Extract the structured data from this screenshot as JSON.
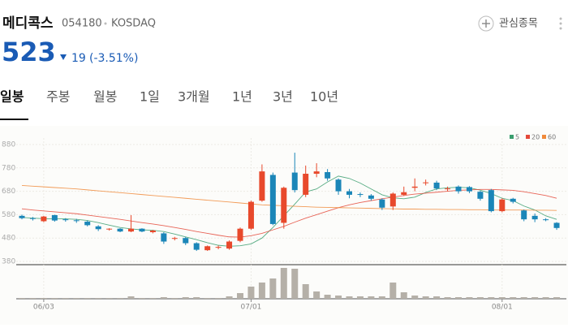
{
  "header": {
    "name": "메디콕스",
    "code": "054180",
    "market": "KOSDAQ",
    "watch": "관심종목",
    "price": "523",
    "change": "19",
    "change_pct": "(-3.51%)"
  },
  "tabs": [
    "일봉",
    "주봉",
    "월봉",
    "1일",
    "3개월",
    "1년",
    "3년",
    "10년"
  ],
  "chart_data": {
    "type": "candlestick",
    "categories": [
      null,
      null,
      "06/03",
      null,
      null,
      null,
      null,
      null,
      null,
      null,
      null,
      null,
      null,
      null,
      null,
      null,
      null,
      null,
      null,
      null,
      null,
      "07/01",
      null,
      null,
      null,
      null,
      null,
      null,
      null,
      null,
      null,
      null,
      null,
      null,
      null,
      null,
      null,
      null,
      null,
      null,
      null,
      null,
      null,
      null,
      "08/01",
      null,
      null,
      null,
      null,
      null
    ],
    "open": [
      575,
      565,
      552,
      578,
      560,
      556,
      550,
      530,
      518,
      520,
      508,
      520,
      505,
      500,
      478,
      480,
      458,
      428,
      440,
      435,
      468,
      520,
      640,
      750,
      545,
      760,
      665,
      755,
      762,
      730,
      680,
      668,
      662,
      645,
      615,
      665,
      695,
      715,
      717,
      690,
      700,
      698,
      678,
      685,
      595,
      648,
      598,
      575,
      560,
      545
    ],
    "high": [
      580,
      570,
      575,
      580,
      565,
      562,
      555,
      535,
      522,
      522,
      578,
      522,
      515,
      505,
      485,
      485,
      462,
      448,
      448,
      470,
      525,
      640,
      795,
      760,
      700,
      845,
      790,
      800,
      775,
      735,
      690,
      675,
      668,
      650,
      675,
      700,
      735,
      730,
      725,
      700,
      705,
      702,
      682,
      690,
      650,
      652,
      602,
      585,
      565,
      548
    ],
    "low": [
      560,
      555,
      548,
      550,
      550,
      545,
      530,
      510,
      512,
      505,
      505,
      505,
      500,
      455,
      470,
      450,
      425,
      425,
      432,
      430,
      462,
      515,
      635,
      535,
      520,
      675,
      655,
      740,
      725,
      665,
      650,
      655,
      640,
      600,
      600,
      660,
      680,
      705,
      685,
      680,
      670,
      672,
      640,
      590,
      590,
      628,
      552,
      548,
      552,
      515
    ],
    "close": [
      565,
      562,
      572,
      555,
      558,
      553,
      535,
      518,
      520,
      508,
      520,
      508,
      512,
      465,
      480,
      458,
      430,
      445,
      442,
      465,
      520,
      635,
      765,
      540,
      695,
      685,
      755,
      765,
      735,
      680,
      665,
      665,
      648,
      610,
      670,
      676,
      700,
      718,
      692,
      692,
      680,
      680,
      648,
      595,
      645,
      635,
      560,
      560,
      557,
      523
    ],
    "up_color": "#e8492c",
    "down_color": "#1b86b8",
    "series": [
      {
        "name": "5",
        "color": "#3a9e6e",
        "values": [
          568,
          565,
          563,
          562,
          562,
          560,
          555,
          546,
          535,
          525,
          519,
          515,
          513,
          508,
          497,
          485,
          473,
          460,
          449,
          445,
          447,
          455,
          480,
          525,
          575,
          625,
          677,
          690,
          720,
          745,
          735,
          715,
          690,
          665,
          652,
          648,
          655,
          675,
          690,
          695,
          697,
          695,
          685,
          670,
          650,
          640,
          617,
          600,
          575,
          560
        ]
      },
      {
        "name": "20",
        "color": "#e4493a",
        "values": [
          605,
          600,
          596,
          592,
          588,
          584,
          578,
          572,
          566,
          560,
          553,
          546,
          540,
          533,
          525,
          517,
          508,
          500,
          492,
          485,
          484,
          490,
          500,
          515,
          530,
          548,
          565,
          580,
          595,
          610,
          622,
          632,
          640,
          648,
          655,
          662,
          668,
          672,
          676,
          680,
          684,
          686,
          688,
          688,
          686,
          684,
          678,
          670,
          662,
          650
        ]
      },
      {
        "name": "60",
        "color": "#f08a3a",
        "values": [
          705,
          702,
          699,
          696,
          693,
          690,
          686,
          682,
          678,
          674,
          670,
          666,
          662,
          658,
          654,
          650,
          646,
          642,
          638,
          634,
          630,
          626,
          622,
          620,
          618,
          616,
          614,
          612,
          611,
          610,
          609,
          608,
          607,
          606,
          605,
          604,
          604,
          603,
          603,
          602,
          602,
          601,
          601,
          600,
          600,
          600,
          600,
          599,
          599,
          598
        ]
      }
    ],
    "volume": {
      "color": "#b5b0a8",
      "values": [
        1,
        1,
        1,
        1,
        1,
        1,
        1,
        1,
        1,
        1,
        3,
        1,
        1,
        2,
        1,
        2,
        2,
        1,
        1,
        3,
        7,
        15,
        20,
        25,
        38,
        37,
        18,
        9,
        5,
        4,
        3,
        3,
        3,
        3,
        20,
        8,
        4,
        3,
        3,
        2,
        2,
        2,
        2,
        2,
        2,
        2,
        2,
        2,
        2,
        2
      ]
    },
    "ylim": [
      380,
      880
    ],
    "yticks": [
      380,
      480,
      580,
      680,
      780,
      880
    ],
    "grid": true
  }
}
